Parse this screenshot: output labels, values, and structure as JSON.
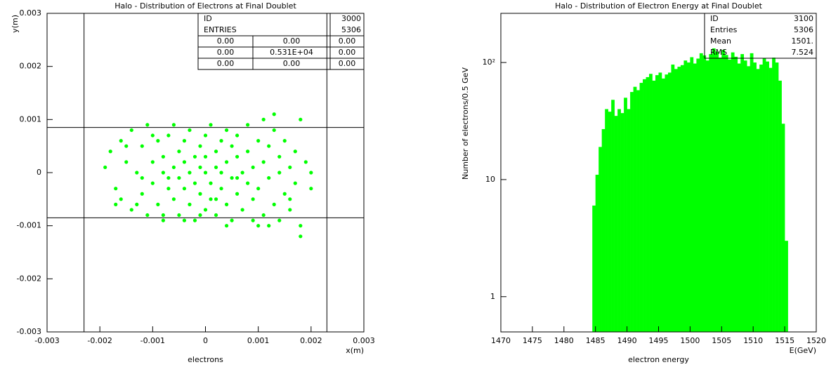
{
  "chart_data": [
    {
      "type": "scatter",
      "title": "Halo - Distribution of Electrons at Final Doublet",
      "x": [
        -0.0019,
        -0.0018,
        -0.0017,
        -0.0016,
        -0.0016,
        -0.0015,
        -0.0014,
        -0.0014,
        -0.0013,
        -0.0012,
        -0.0012,
        -0.0011,
        -0.0011,
        -0.001,
        -0.001,
        -0.0009,
        -0.0009,
        -0.0008,
        -0.0008,
        -0.0008,
        -0.0007,
        -0.0007,
        -0.0006,
        -0.0006,
        -0.0006,
        -0.0005,
        -0.0005,
        -0.0005,
        -0.0004,
        -0.0004,
        -0.0004,
        -0.0003,
        -0.0003,
        -0.0003,
        -0.0002,
        -0.0002,
        -0.0002,
        -0.0001,
        -0.0001,
        -0.0001,
        0,
        0,
        0,
        0,
        0.0001,
        0.0001,
        0.0001,
        0.0002,
        0.0002,
        0.0002,
        0.0003,
        0.0003,
        0.0003,
        0.0004,
        0.0004,
        0.0004,
        0.0005,
        0.0005,
        0.0005,
        0.0006,
        0.0006,
        0.0006,
        0.0007,
        0.0007,
        0.0008,
        0.0008,
        0.0008,
        0.0009,
        0.0009,
        0.001,
        0.001,
        0.0011,
        0.0011,
        0.0012,
        0.0012,
        0.0013,
        0.0013,
        0.0014,
        0.0014,
        0.0015,
        0.0015,
        0.0016,
        0.0016,
        0.0017,
        0.0017,
        0.0018,
        0.0018,
        0.0019,
        0.002,
        0.002,
        -0.0017,
        -0.0015,
        -0.0013,
        -0.0012,
        -0.001,
        -0.0007,
        -0.0004,
        -0.0001,
        0.0002,
        0.0004,
        0.0006,
        0.0009,
        0.0012,
        0.0014,
        0.0016,
        0.0018,
        0.0013,
        0.001,
        0.0011,
        -0.0008
      ],
      "y": [
        0.0001,
        0.0004,
        -0.0003,
        0.0006,
        -0.0005,
        0.0002,
        -0.0007,
        0.0008,
        0,
        -0.0004,
        0.0005,
        0.0009,
        -0.0008,
        0.0002,
        -0.0002,
        0.0006,
        -0.0006,
        0,
        0.0003,
        -0.0009,
        0.0007,
        -0.0003,
        0.0001,
        -0.0005,
        0.0009,
        0.0004,
        -0.0001,
        -0.0008,
        0.0006,
        -0.0003,
        0.0002,
        -0.0006,
        0.0008,
        0,
        0.0003,
        -0.0009,
        -0.0002,
        0.0005,
        -0.0004,
        0.0001,
        0.0007,
        -0.0007,
        0,
        0.0003,
        -0.0002,
        0.0009,
        -0.0005,
        0.0004,
        -0.0008,
        0.0001,
        0.0006,
        -0.0003,
        0,
        0.0008,
        -0.0006,
        0.0002,
        -0.0001,
        0.0005,
        -0.0009,
        0.0003,
        -0.0004,
        0.0007,
        0,
        -0.0007,
        0.0004,
        -0.0002,
        0.0009,
        -0.0005,
        0.0001,
        0.0006,
        -0.0003,
        -0.0008,
        0.0002,
        0.0005,
        -0.0001,
        0.0008,
        -0.0006,
        0,
        0.0003,
        -0.0004,
        0.0006,
        -0.0007,
        0.0001,
        0.0004,
        -0.0002,
        -0.001,
        0.001,
        0.0002,
        -0.0003,
        0,
        -0.0006,
        0.0005,
        -0.0006,
        -0.0001,
        0.0007,
        -0.0001,
        -0.0009,
        -0.0008,
        -0.0005,
        -0.001,
        -0.0001,
        -0.0009,
        -0.001,
        -0.0009,
        -0.0005,
        -0.0012,
        0.0011,
        -0.001,
        0.001,
        -0.0008
      ],
      "color": "#00ff00",
      "xlim": [
        -0.003,
        0.003
      ],
      "ylim": [
        -0.003,
        0.003
      ],
      "xticks": [
        -0.003,
        -0.002,
        -0.001,
        0,
        0.001,
        0.002,
        0.003
      ],
      "yticks": [
        -0.003,
        -0.002,
        -0.001,
        0,
        0.001,
        0.002,
        0.003
      ],
      "xlabel": "x(m)",
      "ylabel": "y(m)",
      "caption": "electrons",
      "ref_lines": {
        "x": [
          -0.0023,
          0.0023
        ],
        "y": [
          -0.00085,
          0.00085
        ]
      },
      "stats": {
        "rows": [
          [
            "ID",
            "3000"
          ],
          [
            "ENTRIES",
            "5306"
          ]
        ],
        "table": [
          [
            "0.00",
            "0.00",
            "0.00"
          ],
          [
            "0.00",
            "0.531E+04",
            "0.00"
          ],
          [
            "0.00",
            "0.00",
            "0.00"
          ]
        ]
      }
    },
    {
      "type": "histogram",
      "title": "Halo - Distribution of Electron Energy at Final Doublet",
      "bins": [
        1484.5,
        1485,
        1485.5,
        1486,
        1486.5,
        1487,
        1487.5,
        1488,
        1488.5,
        1489,
        1489.5,
        1490,
        1490.5,
        1491,
        1491.5,
        1492,
        1492.5,
        1493,
        1493.5,
        1494,
        1494.5,
        1495,
        1495.5,
        1496,
        1496.5,
        1497,
        1497.5,
        1498,
        1498.5,
        1499,
        1499.5,
        1500,
        1500.5,
        1501,
        1501.5,
        1502,
        1502.5,
        1503,
        1503.5,
        1504,
        1504.5,
        1505,
        1505.5,
        1506,
        1506.5,
        1507,
        1507.5,
        1508,
        1508.5,
        1509,
        1509.5,
        1510,
        1510.5,
        1511,
        1511.5,
        1512,
        1512.5,
        1513,
        1513.5,
        1514,
        1514.5,
        1515,
        1515.5
      ],
      "counts": [
        6,
        11,
        19,
        27,
        40,
        38,
        48,
        35,
        40,
        37,
        50,
        40,
        56,
        62,
        58,
        67,
        72,
        75,
        80,
        70,
        78,
        82,
        73,
        79,
        82,
        96,
        88,
        92,
        95,
        104,
        100,
        111,
        98,
        108,
        120,
        115,
        104,
        118,
        132,
        124,
        110,
        128,
        116,
        106,
        122,
        112,
        98,
        118,
        104,
        93,
        120,
        100,
        88,
        96,
        108,
        102,
        90,
        110,
        100,
        70,
        30,
        3
      ],
      "color": "#00ff00",
      "log_y": true,
      "xlim": [
        1470,
        1520
      ],
      "ylim": [
        0.5,
        263
      ],
      "xticks": [
        1470,
        1475,
        1480,
        1485,
        1490,
        1495,
        1500,
        1505,
        1510,
        1515,
        1520
      ],
      "yticks": [
        1,
        10,
        {
          "value": 100,
          "label": "10²"
        }
      ],
      "xlabel": "E(GeV)",
      "ylabel": "Number of electrons/0.5 GeV",
      "caption": "electron energy",
      "stats": {
        "rows": [
          [
            "ID",
            "3100"
          ],
          [
            "Entries",
            "5306"
          ],
          [
            "Mean",
            "1501."
          ],
          [
            "RMS",
            "7.524"
          ]
        ]
      }
    }
  ]
}
